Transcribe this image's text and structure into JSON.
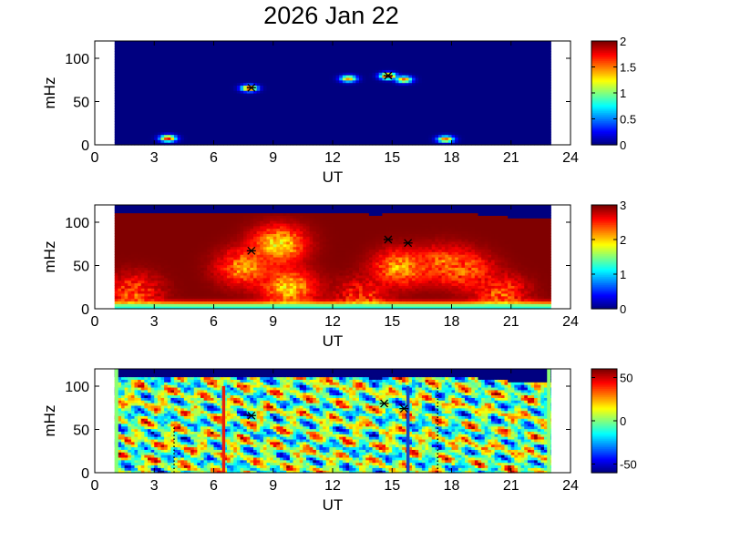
{
  "figure": {
    "title": "2026 Jan 22"
  },
  "chart_data": [
    {
      "type": "heatmap",
      "title": "",
      "xlabel": "UT",
      "ylabel": "mHz",
      "xlim": [
        0,
        24
      ],
      "ylim": [
        0,
        120
      ],
      "data_extent_x": [
        1,
        23
      ],
      "xticks": [
        "0",
        "3",
        "6",
        "9",
        "12",
        "15",
        "18",
        "21",
        "24"
      ],
      "yticks": [
        "0",
        "50",
        "100"
      ],
      "colorbar": {
        "min": 0,
        "max": 2,
        "ticks": [
          "0",
          "0.5",
          "1",
          "1.5",
          "2"
        ],
        "colormap": "jet"
      },
      "background_value": 0,
      "hotspots": [
        {
          "x": 3.7,
          "y": 8,
          "value": 1.8
        },
        {
          "x": 7.8,
          "y": 66,
          "value": 1.8
        },
        {
          "x": 12.8,
          "y": 77,
          "value": 1.5
        },
        {
          "x": 14.8,
          "y": 80,
          "value": 2
        },
        {
          "x": 15.6,
          "y": 76,
          "value": 1.6
        },
        {
          "x": 17.7,
          "y": 7,
          "value": 1.6
        }
      ],
      "markers": [
        {
          "x": 7.9,
          "y": 66
        },
        {
          "x": 14.8,
          "y": 80
        }
      ]
    },
    {
      "type": "heatmap",
      "title": "",
      "xlabel": "UT",
      "ylabel": "mHz",
      "xlim": [
        0,
        24
      ],
      "ylim": [
        0,
        120
      ],
      "data_extent_x": [
        1,
        23
      ],
      "xticks": [
        "0",
        "3",
        "6",
        "9",
        "12",
        "15",
        "18",
        "21",
        "24"
      ],
      "yticks": [
        "0",
        "50",
        "100"
      ],
      "colorbar": {
        "min": 0,
        "max": 3,
        "ticks": [
          "0",
          "1",
          "2",
          "3"
        ],
        "colormap": "jet"
      },
      "background_value": 3,
      "upper_boundary_mHz": [
        110,
        110,
        112,
        112,
        110,
        112,
        111,
        110,
        112,
        111,
        110,
        112,
        111,
        109,
        110,
        112,
        110,
        111,
        110,
        108,
        106,
        105,
        104
      ],
      "features": [
        {
          "x": 7.5,
          "y": 48,
          "value": 2.2
        },
        {
          "x": 9.3,
          "y": 75,
          "value": 1.9
        },
        {
          "x": 9.8,
          "y": 25,
          "value": 2.0
        },
        {
          "x": 15.4,
          "y": 48,
          "value": 2.1
        },
        {
          "x": 17.6,
          "y": 52,
          "value": 2.3
        },
        {
          "x": 18.8,
          "y": 45,
          "value": 2.4
        },
        {
          "x": 2.0,
          "y": 20,
          "value": 2.4
        },
        {
          "x": 20.5,
          "y": 18,
          "value": 2.4
        },
        {
          "x": 13.5,
          "y": 15,
          "value": 2.5
        }
      ],
      "bottom_band": {
        "y": 2,
        "value": 1.2
      },
      "markers": [
        {
          "x": 7.9,
          "y": 67
        },
        {
          "x": 14.8,
          "y": 80
        },
        {
          "x": 15.8,
          "y": 76
        }
      ]
    },
    {
      "type": "heatmap",
      "title": "",
      "xlabel": "UT",
      "ylabel": "mHz",
      "xlim": [
        0,
        24
      ],
      "ylim": [
        0,
        120
      ],
      "data_extent_x": [
        1,
        23
      ],
      "xticks": [
        "0",
        "3",
        "6",
        "9",
        "12",
        "15",
        "18",
        "21",
        "24"
      ],
      "yticks": [
        "0",
        "50",
        "100"
      ],
      "colorbar": {
        "min": -60,
        "max": 60,
        "ticks": [
          "-50",
          "0",
          "50"
        ],
        "colormap": "jet"
      },
      "background_value": 0,
      "upper_boundary_mHz": [
        110,
        110,
        112,
        112,
        110,
        112,
        111,
        110,
        112,
        111,
        110,
        112,
        111,
        109,
        110,
        112,
        110,
        111,
        110,
        108,
        106,
        105,
        104
      ],
      "vertical_lines": [
        {
          "x": 6.5,
          "ymax": 100,
          "color": "#e8200c",
          "style": "solid"
        },
        {
          "x": 15.8,
          "ymax": 100,
          "color": "#1547c8",
          "style": "solid"
        },
        {
          "x": 4.0,
          "ymax": 55,
          "color": "#000000",
          "style": "dotted"
        },
        {
          "x": 17.3,
          "ymax": 100,
          "color": "#000000",
          "style": "dotted"
        }
      ],
      "markers": [
        {
          "x": 7.9,
          "y": 66
        },
        {
          "x": 14.6,
          "y": 80
        },
        {
          "x": 15.6,
          "y": 74
        }
      ]
    }
  ]
}
